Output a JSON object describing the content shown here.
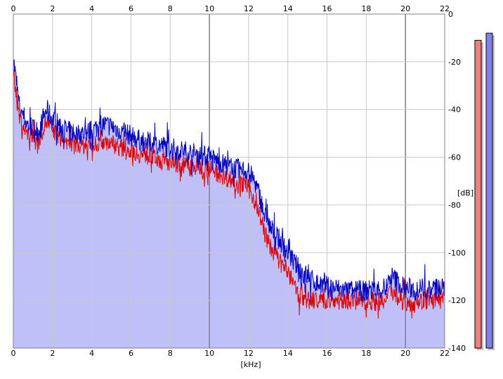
{
  "chart_data": {
    "type": "area",
    "xlabel": "[kHz]",
    "ylabel": "[dB]",
    "xlim": [
      0,
      22
    ],
    "ylim": [
      -140,
      0
    ],
    "grid": true,
    "x_ticks": [
      0,
      2,
      4,
      6,
      8,
      10,
      12,
      14,
      16,
      18,
      20,
      22
    ],
    "x_tick_labels": [
      "0",
      "2",
      "4",
      "6",
      "8",
      "10",
      "12",
      "14",
      "16",
      "18",
      "20",
      "22"
    ],
    "y_ticks": [
      0,
      -20,
      -40,
      -60,
      -80,
      -100,
      -120,
      -140
    ],
    "y_tick_labels": [
      "0",
      "-20",
      "-40",
      "-60",
      "-80",
      "-100",
      "-120",
      "-140"
    ],
    "fill_color": "#c0c0f8",
    "grid_color": "#c8c8c8",
    "major_grid_color": "#808080",
    "series": [
      {
        "color": "#0000c0",
        "x": [
          0,
          0.1,
          0.2,
          0.3,
          0.5,
          0.7,
          1.0,
          1.3,
          1.5,
          1.7,
          2.0,
          2.3,
          2.6,
          3.0,
          3.5,
          4.0,
          4.5,
          5.0,
          5.5,
          6.0,
          6.5,
          7.0,
          7.5,
          8.0,
          8.5,
          9.0,
          9.5,
          10.0,
          10.5,
          11.0,
          11.5,
          12.0,
          12.3,
          12.6,
          12.8,
          13.0,
          13.3,
          13.6,
          14.0,
          14.3,
          14.6,
          15.0,
          15.5,
          16.0,
          17.0,
          18.0,
          19.0,
          19.3,
          20.0,
          21.0,
          22.0
        ],
        "values": [
          -18,
          -25,
          -32,
          -38,
          -42,
          -46,
          -48,
          -49,
          -44,
          -40,
          -44,
          -46,
          -48,
          -50,
          -50,
          -49,
          -46,
          -47,
          -49,
          -51,
          -53,
          -54,
          -55,
          -56,
          -57,
          -58,
          -59,
          -60,
          -62,
          -64,
          -65,
          -66,
          -70,
          -77,
          -84,
          -88,
          -92,
          -95,
          -100,
          -104,
          -107,
          -110,
          -113,
          -114,
          -116,
          -116,
          -115,
          -110,
          -115,
          -115,
          -115
        ]
      },
      {
        "color": "#e00000",
        "x": [
          0,
          0.1,
          0.2,
          0.3,
          0.5,
          0.7,
          1.0,
          1.3,
          1.5,
          1.7,
          2.0,
          2.3,
          2.6,
          3.0,
          3.5,
          4.0,
          4.5,
          5.0,
          5.5,
          6.0,
          6.5,
          7.0,
          7.5,
          8.0,
          8.5,
          9.0,
          9.5,
          10.0,
          10.5,
          11.0,
          11.5,
          12.0,
          12.3,
          12.6,
          12.8,
          13.0,
          13.3,
          13.6,
          14.0,
          14.3,
          14.6,
          15.0,
          15.5,
          16.0,
          17.0,
          18.0,
          19.0,
          19.3,
          20.0,
          21.0,
          22.0
        ],
        "values": [
          -22,
          -30,
          -37,
          -43,
          -47,
          -50,
          -52,
          -53,
          -48,
          -45,
          -49,
          -51,
          -53,
          -55,
          -55,
          -55,
          -53,
          -54,
          -56,
          -57,
          -59,
          -60,
          -61,
          -62,
          -63,
          -64,
          -64,
          -65,
          -67,
          -69,
          -71,
          -73,
          -78,
          -85,
          -91,
          -96,
          -100,
          -104,
          -108,
          -114,
          -118,
          -120,
          -120,
          -120,
          -120,
          -120,
          -121,
          -116,
          -121,
          -120,
          -120
        ]
      }
    ],
    "level_meters": [
      {
        "color": "#f08080",
        "value": -11
      },
      {
        "color": "#8080f0",
        "value": -8
      }
    ]
  }
}
